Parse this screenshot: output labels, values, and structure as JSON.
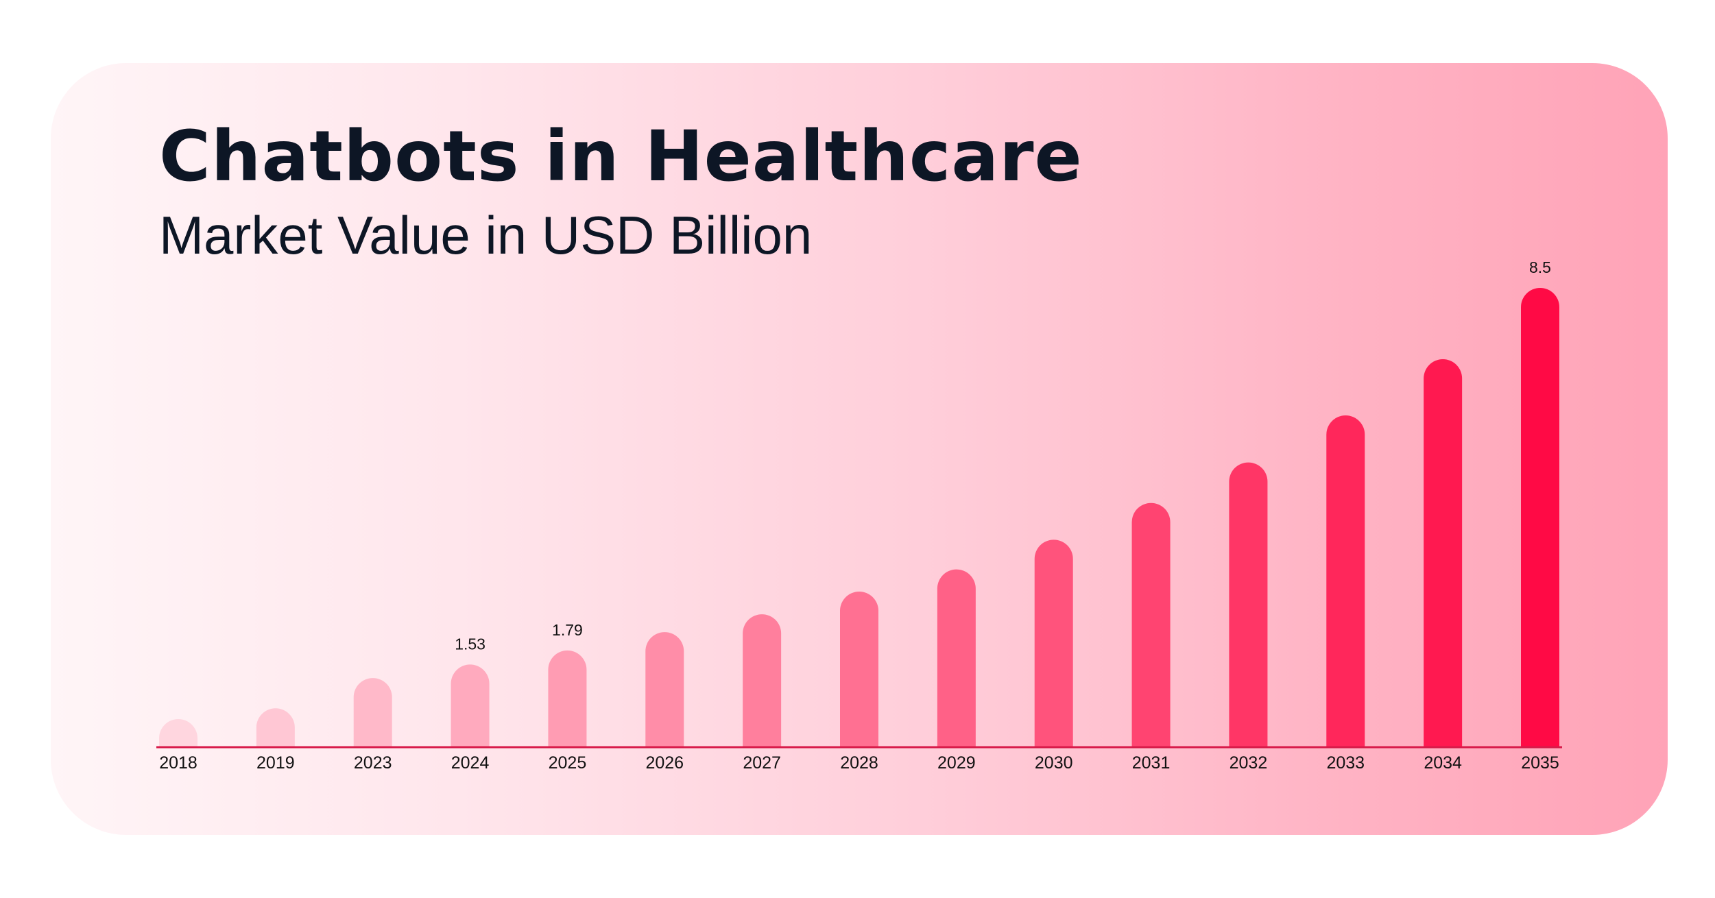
{
  "chart_data": {
    "type": "bar",
    "title": "Chatbots in Healthcare",
    "subtitle": "Market Value in USD Billion",
    "categories": [
      "2018",
      "2019",
      "2023",
      "2024",
      "2025",
      "2026",
      "2027",
      "2028",
      "2029",
      "2030",
      "2031",
      "2032",
      "2033",
      "2034",
      "2035"
    ],
    "values": [
      0.52,
      0.72,
      1.28,
      1.53,
      1.79,
      2.13,
      2.46,
      2.88,
      3.29,
      3.84,
      4.52,
      5.27,
      6.14,
      7.18,
      8.5
    ],
    "data_labels": {
      "3": "1.53",
      "4": "1.79",
      "14": "8.5"
    },
    "ylim": [
      0,
      8.5
    ],
    "grid": false,
    "colors": {
      "bar_start": "#ffd6df",
      "bar_end": "#ff0a45",
      "axis": "#d81b4a"
    }
  }
}
